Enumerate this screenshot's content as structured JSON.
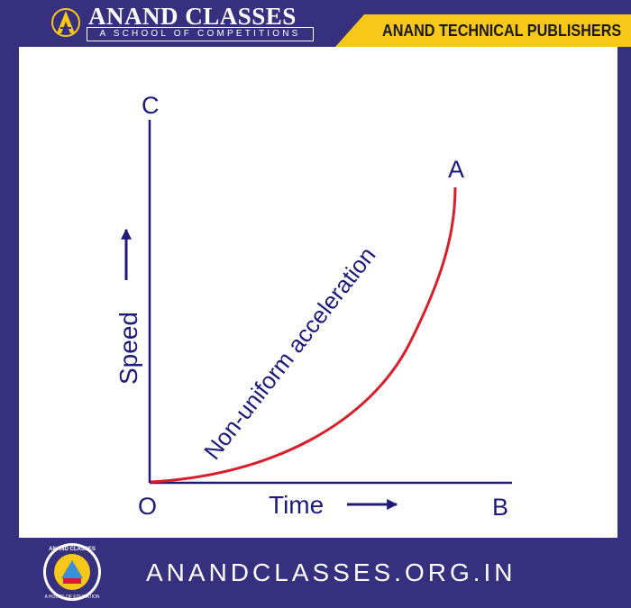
{
  "header": {
    "brand_title": "ANAND CLASSES",
    "brand_subtitle": "A SCHOOL OF COMPETITIONS",
    "publisher": "ANAND TECHNICAL PUBLISHERS"
  },
  "footer": {
    "website": "ANANDCLASSES.ORG.IN",
    "logo_text_top": "ANAND CLASSES",
    "logo_text_bottom": "A HOUSE OF EDUCATION"
  },
  "diagram": {
    "points": {
      "origin": "O",
      "y_end": "C",
      "x_end": "B",
      "curve_end": "A"
    },
    "x_axis_label": "Time",
    "y_axis_label": "Speed",
    "curve_label": "Non-uniform acceleration"
  },
  "colors": {
    "frame": "#37307e",
    "accent": "#f7c81a",
    "curve": "#d81e2a",
    "text": "#1e1a7a"
  }
}
